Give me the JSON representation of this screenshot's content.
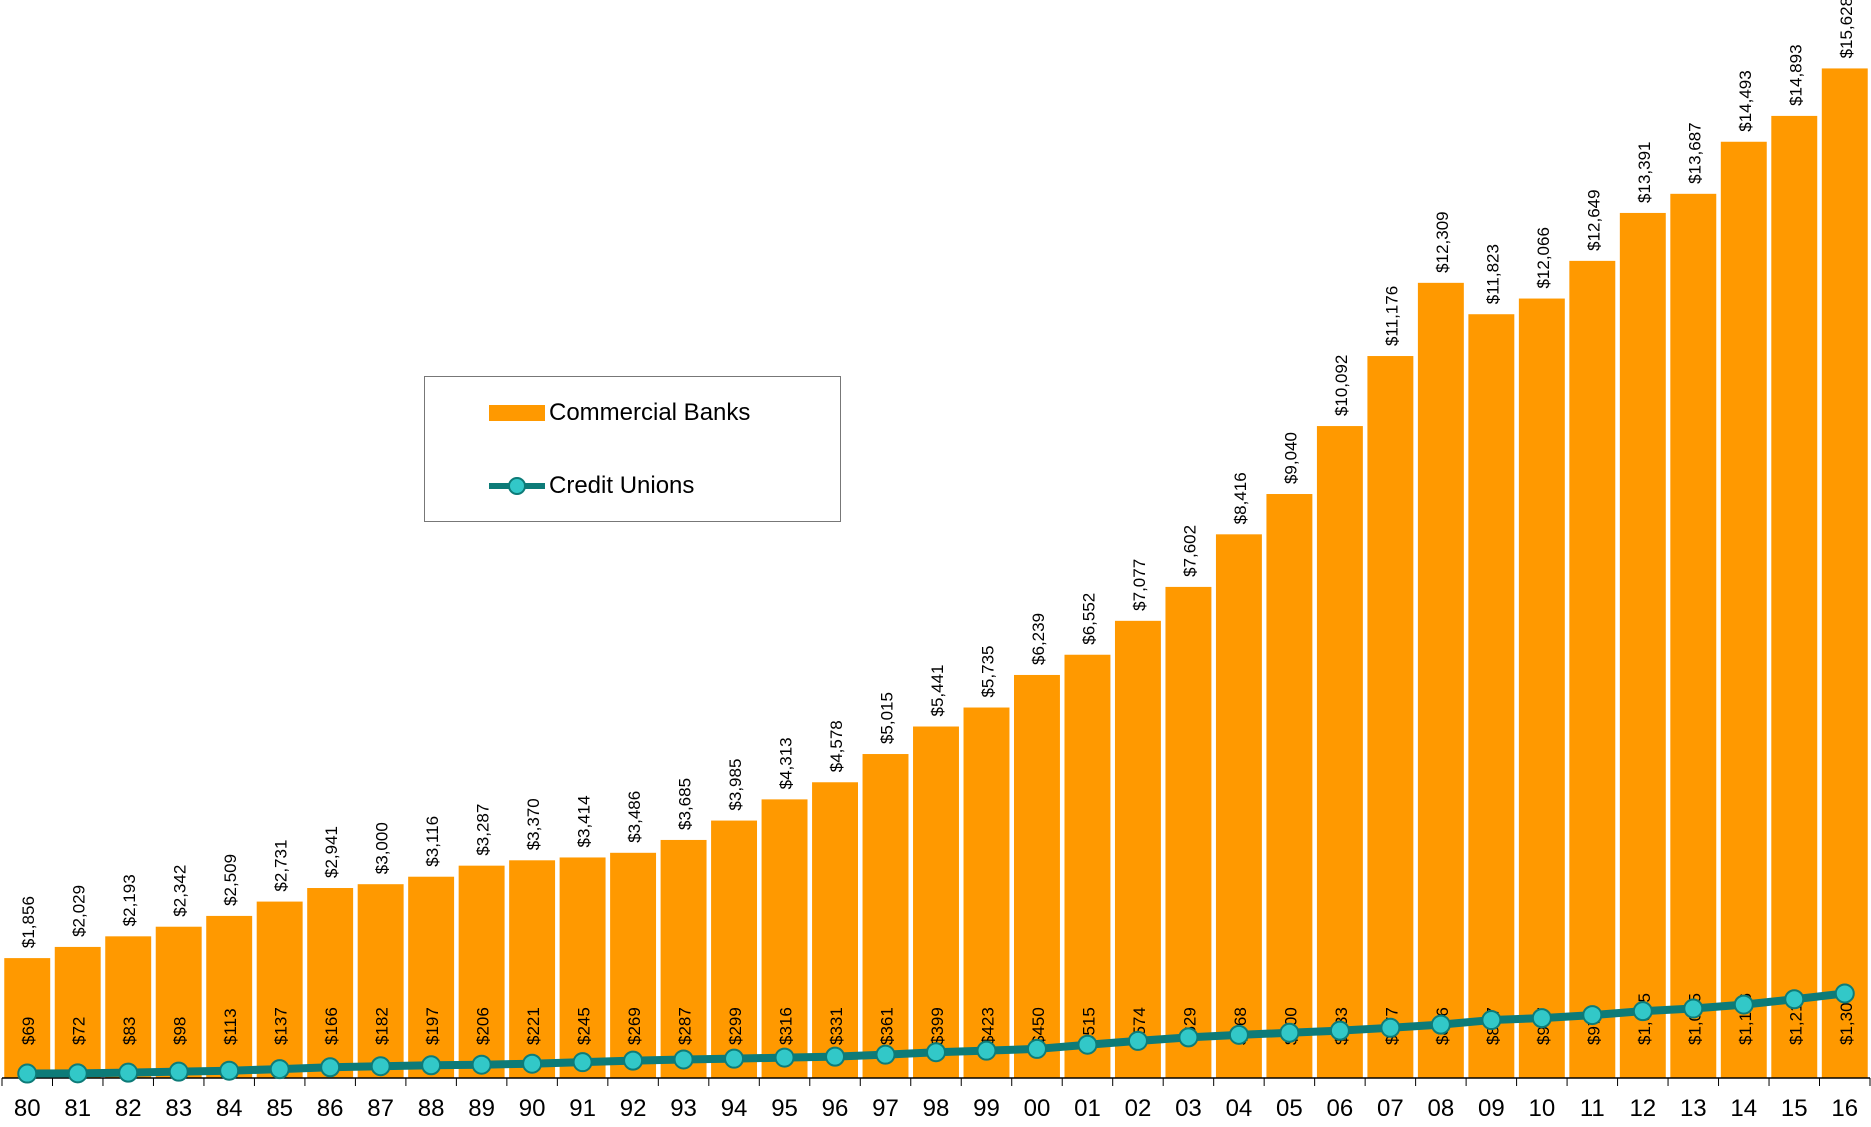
{
  "colors": {
    "banks": "#ff9900",
    "credit_unions_line": "#0d7b78",
    "credit_unions_marker": "#32c8c8",
    "axis": "#000000",
    "text": "#000000"
  },
  "legend": {
    "placement": "center-left",
    "items": [
      {
        "label": "Commercial Banks",
        "icon": "orange-bar-swatch"
      },
      {
        "label": "Credit Unions",
        "icon": "teal-line-marker"
      }
    ]
  },
  "chart_data": {
    "type": "bar",
    "title": "",
    "xlabel": "",
    "ylabel": "",
    "ylim": [
      0,
      16000
    ],
    "grid": false,
    "categories": [
      "80",
      "81",
      "82",
      "83",
      "84",
      "85",
      "86",
      "87",
      "88",
      "89",
      "90",
      "91",
      "92",
      "93",
      "94",
      "95",
      "96",
      "97",
      "98",
      "99",
      "00",
      "01",
      "02",
      "03",
      "04",
      "05",
      "06",
      "07",
      "08",
      "09",
      "10",
      "11",
      "12",
      "13",
      "14",
      "15",
      "16"
    ],
    "series": [
      {
        "name": "Commercial Banks",
        "type": "bar",
        "values": [
          1856,
          2029,
          2193,
          2342,
          2509,
          2731,
          2941,
          3000,
          3116,
          3287,
          3370,
          3414,
          3486,
          3685,
          3985,
          4313,
          4578,
          5015,
          5441,
          5735,
          6239,
          6552,
          7077,
          7602,
          8416,
          9040,
          10092,
          11176,
          12309,
          11823,
          12066,
          12649,
          13391,
          13687,
          14493,
          14893,
          15628
        ],
        "labels": [
          "$1,856",
          "$2,029",
          "$2,193",
          "$2,342",
          "$2,509",
          "$2,731",
          "$2,941",
          "$3,000",
          "$3,116",
          "$3,287",
          "$3,370",
          "$3,414",
          "$3,486",
          "$3,685",
          "$3,985",
          "$4,313",
          "$4,578",
          "$5,015",
          "$5,441",
          "$5,735",
          "$6,239",
          "$6,552",
          "$7,077",
          "$7,602",
          "$8,416",
          "$9,040",
          "$10,092",
          "$11,176",
          "$12,309",
          "$11,823",
          "$12,066",
          "$12,649",
          "$13,391",
          "$13,687",
          "$14,493",
          "$14,893",
          "$15,628"
        ]
      },
      {
        "name": "Credit Unions",
        "type": "line",
        "values": [
          69,
          72,
          83,
          98,
          113,
          137,
          166,
          182,
          197,
          206,
          221,
          245,
          269,
          287,
          299,
          316,
          331,
          361,
          399,
          423,
          450,
          515,
          574,
          629,
          668,
          700,
          733,
          777,
          826,
          897,
          927,
          974,
          1035,
          1075,
          1136,
          1219,
          1309
        ],
        "labels": [
          "$69",
          "$72",
          "$83",
          "$98",
          "$113",
          "$137",
          "$166",
          "$182",
          "$197",
          "$206",
          "$221",
          "$245",
          "$269",
          "$287",
          "$299",
          "$316",
          "$331",
          "$361",
          "$399",
          "$423",
          "$450",
          "$515",
          "$574",
          "$629",
          "$668",
          "$700",
          "$733",
          "$777",
          "$826",
          "$897",
          "$927",
          "$974",
          "$1,035",
          "$1,075",
          "$1,136",
          "$1,219",
          "$1,309"
        ]
      }
    ]
  }
}
